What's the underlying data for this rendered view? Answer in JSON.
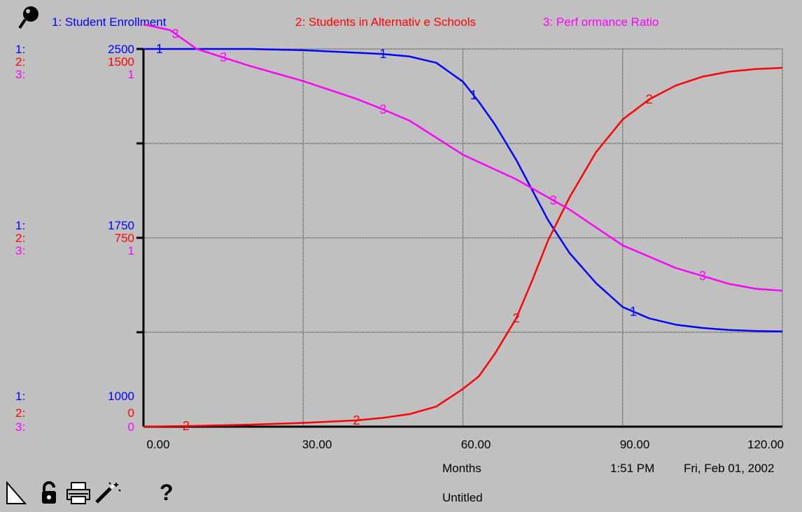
{
  "legend": {
    "s1": "1: Student Enrollment",
    "s2": "2: Students in Alternativ e Schools",
    "s3": "3: Perf ormance Ratio"
  },
  "axis_labels": {
    "top": {
      "k1": "1:",
      "v1": "2500",
      "k2": "2:",
      "v2": "1500",
      "k3": "3:",
      "v3": "1"
    },
    "middle": {
      "k1": "1:",
      "v1": "1750",
      "k2": "2:",
      "v2": "750",
      "k3": "3:",
      "v3": "1"
    },
    "bottom": {
      "k1": "1:",
      "v1": "1000",
      "k2": "2:",
      "v2": "0",
      "k3": "3:",
      "v3": "0"
    }
  },
  "x_ticks": [
    "0.00",
    "30.00",
    "60.00",
    "90.00",
    "120.00"
  ],
  "footer": {
    "xlabel": "Months",
    "time": "1:51 PM",
    "date": "Fri, Feb 01, 2002",
    "title": "Untitled",
    "help": "?"
  },
  "colors": {
    "s1": "#0000ff",
    "s2": "#ff0000",
    "s3": "#ff00ff",
    "background": "#c0c0c0",
    "grid": "#555555"
  },
  "icons": [
    "graph-pin-icon",
    "page-corner-icon",
    "lock-icon",
    "print-icon",
    "magic-wand-icon",
    "help-icon"
  ],
  "chart_data": {
    "type": "line",
    "title": "",
    "xlabel": "Months",
    "x_range": [
      0,
      120
    ],
    "grid": true,
    "legend_position": "top",
    "series": [
      {
        "name": "1: Student Enrollment",
        "axis_range": [
          1000,
          2500
        ],
        "marker": "1",
        "x": [
          0,
          10,
          20,
          30,
          40,
          45,
          50,
          55,
          60,
          63,
          66,
          70,
          73,
          76,
          80,
          85,
          90,
          95,
          100,
          105,
          110,
          115,
          120
        ],
        "y": [
          2500,
          2500,
          2500,
          2495,
          2485,
          2480,
          2470,
          2445,
          2370,
          2290,
          2200,
          2060,
          1940,
          1820,
          1690,
          1570,
          1475,
          1430,
          1405,
          1392,
          1384,
          1380,
          1378
        ]
      },
      {
        "name": "2: Students in Alternativ e Schools",
        "axis_range": [
          0,
          1500
        ],
        "marker": "2",
        "x": [
          0,
          10,
          20,
          30,
          40,
          45,
          50,
          55,
          60,
          63,
          66,
          70,
          73,
          76,
          80,
          85,
          90,
          95,
          100,
          105,
          110,
          115,
          120
        ],
        "y": [
          0,
          3,
          8,
          15,
          25,
          35,
          50,
          80,
          150,
          200,
          290,
          430,
          580,
          740,
          910,
          1090,
          1220,
          1300,
          1355,
          1390,
          1410,
          1420,
          1425
        ]
      },
      {
        "name": "3: Perf ormance Ratio",
        "axis_range": [
          0,
          1
        ],
        "marker": "3",
        "x": [
          0,
          5,
          10,
          20,
          30,
          40,
          45,
          50,
          60,
          70,
          75,
          80,
          90,
          100,
          110,
          115,
          120
        ],
        "y": [
          1.065,
          1.05,
          1.0,
          0.955,
          0.915,
          0.868,
          0.84,
          0.81,
          0.72,
          0.655,
          0.615,
          0.575,
          0.48,
          0.42,
          0.378,
          0.365,
          0.36
        ]
      }
    ]
  }
}
